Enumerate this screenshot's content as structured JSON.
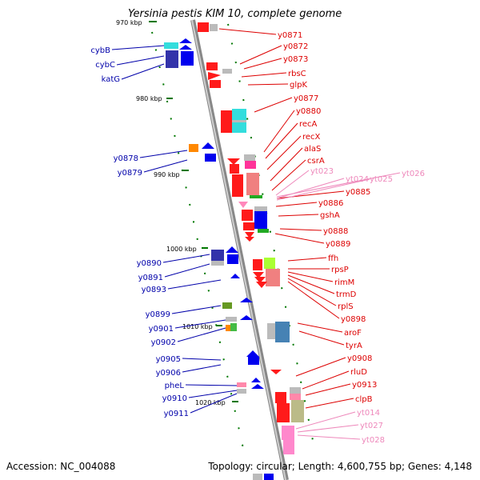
{
  "title": "Yersinia pestis KIM 10, complete genome",
  "footer": {
    "accession": "Accession: NC_004088",
    "summary": "Topology: circular; Length: 4,600,755 bp; Genes: 4,148"
  },
  "colors": {
    "left_label": "#0000aa",
    "right_label": "#dd0000",
    "rna_label": "#ee88bb",
    "backbone": "#999999",
    "tick": "#007700"
  },
  "ruler_labels": [
    "970 kbp",
    "980 kbp",
    "990 kbp",
    "1000 kbp",
    "1010 kbp",
    "1020 kbp"
  ],
  "left_genes": [
    "cybB",
    "cybC",
    "katG",
    "y0878",
    "y0879",
    "y0890",
    "y0891",
    "y0893",
    "y0899",
    "y0901",
    "y0902",
    "y0905",
    "y0906",
    "pheL",
    "y0910",
    "y0911"
  ],
  "right_genes": [
    "y0871",
    "y0872",
    "y0873",
    "rbsC",
    "glpK",
    "y0877",
    "y0880",
    "recA",
    "recX",
    "alaS",
    "csrA",
    "y0885",
    "y0886",
    "gshA",
    "y0888",
    "y0889",
    "ffh",
    "rpsP",
    "rimM",
    "trmD",
    "rplS",
    "y0898",
    "aroF",
    "tyrA",
    "y0908",
    "rluD",
    "y0913",
    "clpB"
  ],
  "rna_genes": [
    "yt023",
    "yt024",
    "yt025",
    "yt026",
    "yt014",
    "yt027",
    "yt028"
  ]
}
